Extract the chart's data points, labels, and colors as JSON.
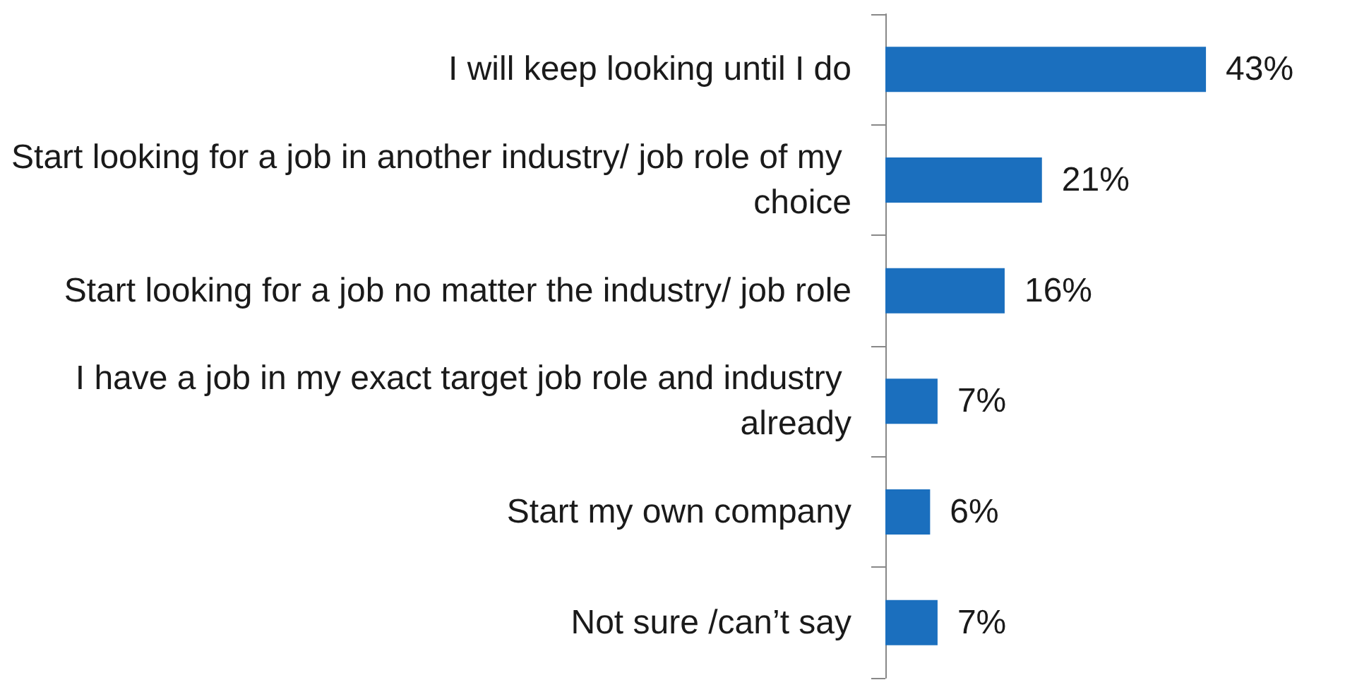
{
  "chart_data": {
    "type": "bar",
    "orientation": "horizontal",
    "categories": [
      "I will keep looking until I do",
      "Start looking for a job in another industry/ job role of my choice",
      "Start looking for a job no matter the industry/ job role",
      "I have a job in my exact target job role and industry already",
      "Start my own company",
      "Not sure /can’t say"
    ],
    "values": [
      43,
      21,
      16,
      7,
      6,
      7
    ],
    "value_labels": [
      "43%",
      "21%",
      "16%",
      "7%",
      "6%",
      "7%"
    ],
    "color": "#1b6fbe"
  }
}
